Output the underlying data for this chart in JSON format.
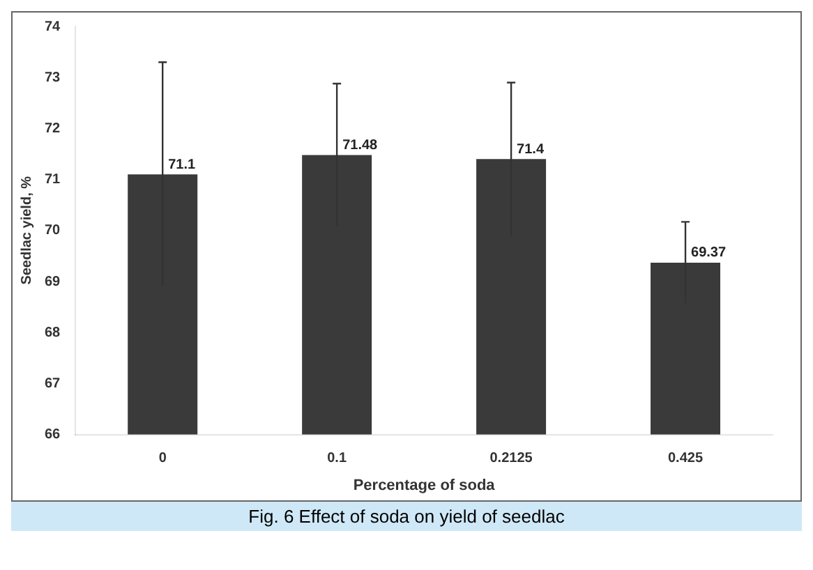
{
  "chart_data": {
    "type": "bar",
    "xlabel": "Percentage of soda",
    "ylabel": "Seedlac yield, %",
    "annotations": [
      "Fig. 6 Effect of soda on yield of seedlac"
    ],
    "categories": [
      "0",
      "0.1",
      "0.2125",
      "0.425"
    ],
    "values": [
      71.1,
      71.48,
      71.4,
      69.37
    ],
    "errors": [
      2.2,
      1.4,
      1.5,
      0.8
    ],
    "color": "#3a3a3a",
    "ylim": [
      66,
      74
    ],
    "yticks": [
      66,
      67,
      68,
      69,
      70,
      71,
      72,
      73,
      74
    ],
    "grid": false,
    "legend": false,
    "data_labels": true
  }
}
